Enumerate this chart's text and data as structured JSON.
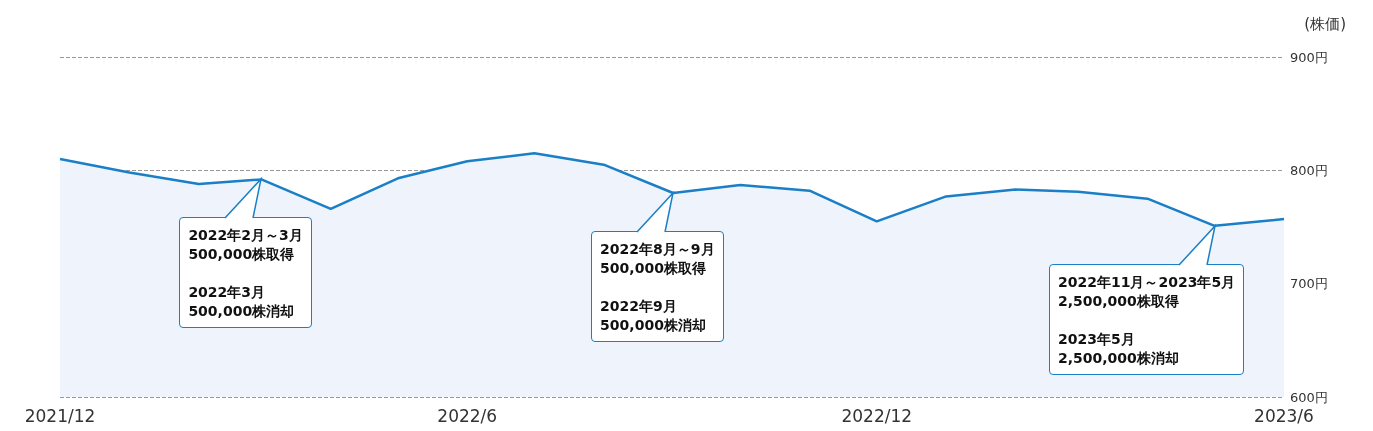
{
  "chart_data": {
    "type": "area",
    "ylabel": "(株価)",
    "x": [
      "2021-12",
      "2022-01",
      "2022-02",
      "2022-03",
      "2022-04",
      "2022-05",
      "2022-06",
      "2022-07",
      "2022-08",
      "2022-09",
      "2022-10",
      "2022-11",
      "2022-12",
      "2023-01",
      "2023-02",
      "2023-03",
      "2023-04",
      "2023-05",
      "2023-06"
    ],
    "series": [
      {
        "color": "#1a7fc6",
        "values": [
          810,
          798,
          788,
          792,
          766,
          793,
          808,
          815,
          805,
          780,
          787,
          782,
          755,
          777,
          783,
          781,
          775,
          751,
          757
        ]
      }
    ],
    "xlim": [
      "2021-12",
      "2023-06"
    ],
    "xticks": [
      {
        "value": "2021-12",
        "label": "2021/12"
      },
      {
        "value": "2022-06",
        "label": "2022/6"
      },
      {
        "value": "2022-12",
        "label": "2022/12"
      },
      {
        "value": "2023-06",
        "label": "2023/6"
      }
    ],
    "ylim": [
      600,
      900
    ],
    "yticks": [
      {
        "value": 600,
        "label": "600円"
      },
      {
        "value": 700,
        "label": "700円"
      },
      {
        "value": 800,
        "label": "800円"
      },
      {
        "value": 900,
        "label": "900円"
      }
    ],
    "grid": "y",
    "line_style": "solid",
    "marker": "none",
    "annotations": [
      "2022年2月～3月 500,000株取得",
      "2022年3月 500,000株消却",
      "2022年8月～9月 500,000株取得",
      "2022年9月 500,000株消却",
      "2022年11月～2023年5月 2,500,000株取得",
      "2023年5月 2,500,000株消却"
    ]
  }
}
